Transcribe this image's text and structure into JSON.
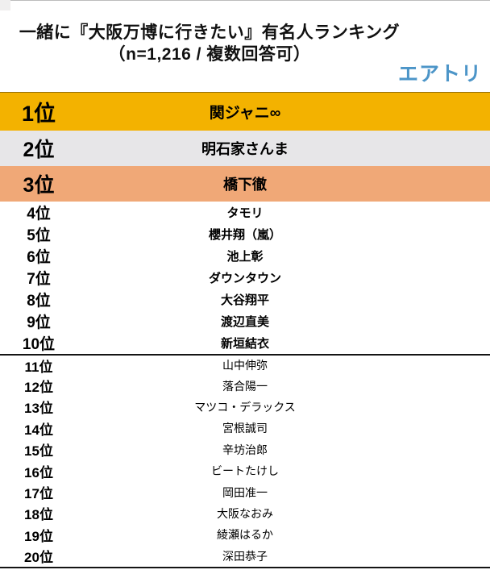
{
  "header": {
    "title_line1": "一緒に『大阪万博に行きたい』有名人ランキング",
    "title_line2": "（n=1,216 / 複数回答可）",
    "logo_text": "エアトリ"
  },
  "colors": {
    "rank1_bg": "#F3B200",
    "rank2_bg": "#E7E6E8",
    "rank3_bg": "#F0A877",
    "logo_blue": "#4C95C8",
    "separator": "#141414"
  },
  "ranking": [
    {
      "rank": "1位",
      "name": "関ジャニ∞"
    },
    {
      "rank": "2位",
      "name": "明石家さんま"
    },
    {
      "rank": "3位",
      "name": "橋下徹"
    },
    {
      "rank": "4位",
      "name": "タモリ"
    },
    {
      "rank": "5位",
      "name": "櫻井翔（嵐）"
    },
    {
      "rank": "6位",
      "name": "池上彰"
    },
    {
      "rank": "7位",
      "name": "ダウンタウン"
    },
    {
      "rank": "8位",
      "name": "大谷翔平"
    },
    {
      "rank": "9位",
      "name": "渡辺直美"
    },
    {
      "rank": "10位",
      "name": "新垣結衣"
    },
    {
      "rank": "11位",
      "name": "山中伸弥"
    },
    {
      "rank": "12位",
      "name": "落合陽一"
    },
    {
      "rank": "13位",
      "name": "マツコ・デラックス"
    },
    {
      "rank": "14位",
      "name": "宮根誠司"
    },
    {
      "rank": "15位",
      "name": "辛坊治郎"
    },
    {
      "rank": "16位",
      "name": "ビートたけし"
    },
    {
      "rank": "17位",
      "name": "岡田准一"
    },
    {
      "rank": "18位",
      "name": "大阪なおみ"
    },
    {
      "rank": "19位",
      "name": "綾瀬はるか"
    },
    {
      "rank": "20位",
      "name": "深田恭子"
    }
  ],
  "chart_data": {
    "type": "table",
    "title": "一緒に『大阪万博に行きたい』有名人ランキング",
    "subtitle": "（n=1,216 / 複数回答可）",
    "rows": [
      [
        "1位",
        "関ジャニ∞"
      ],
      [
        "2位",
        "明石家さんま"
      ],
      [
        "3位",
        "橋下徹"
      ],
      [
        "4位",
        "タモリ"
      ],
      [
        "5位",
        "櫻井翔（嵐）"
      ],
      [
        "6位",
        "池上彰"
      ],
      [
        "7位",
        "ダウンタウン"
      ],
      [
        "8位",
        "大谷翔平"
      ],
      [
        "9位",
        "渡辺直美"
      ],
      [
        "10位",
        "新垣結衣"
      ],
      [
        "11位",
        "山中伸弥"
      ],
      [
        "12位",
        "落合陽一"
      ],
      [
        "13位",
        "マツコ・デラックス"
      ],
      [
        "14位",
        "宮根誠司"
      ],
      [
        "15位",
        "辛坊治郎"
      ],
      [
        "16位",
        "ビートたけし"
      ],
      [
        "17位",
        "岡田准一"
      ],
      [
        "18位",
        "大阪なおみ"
      ],
      [
        "19位",
        "綾瀬はるか"
      ],
      [
        "20位",
        "深田恭子"
      ]
    ],
    "layout": {
      "top10_bold": true,
      "medal_rows": [
        1,
        2,
        3
      ],
      "separator_after_rank": 10
    }
  }
}
